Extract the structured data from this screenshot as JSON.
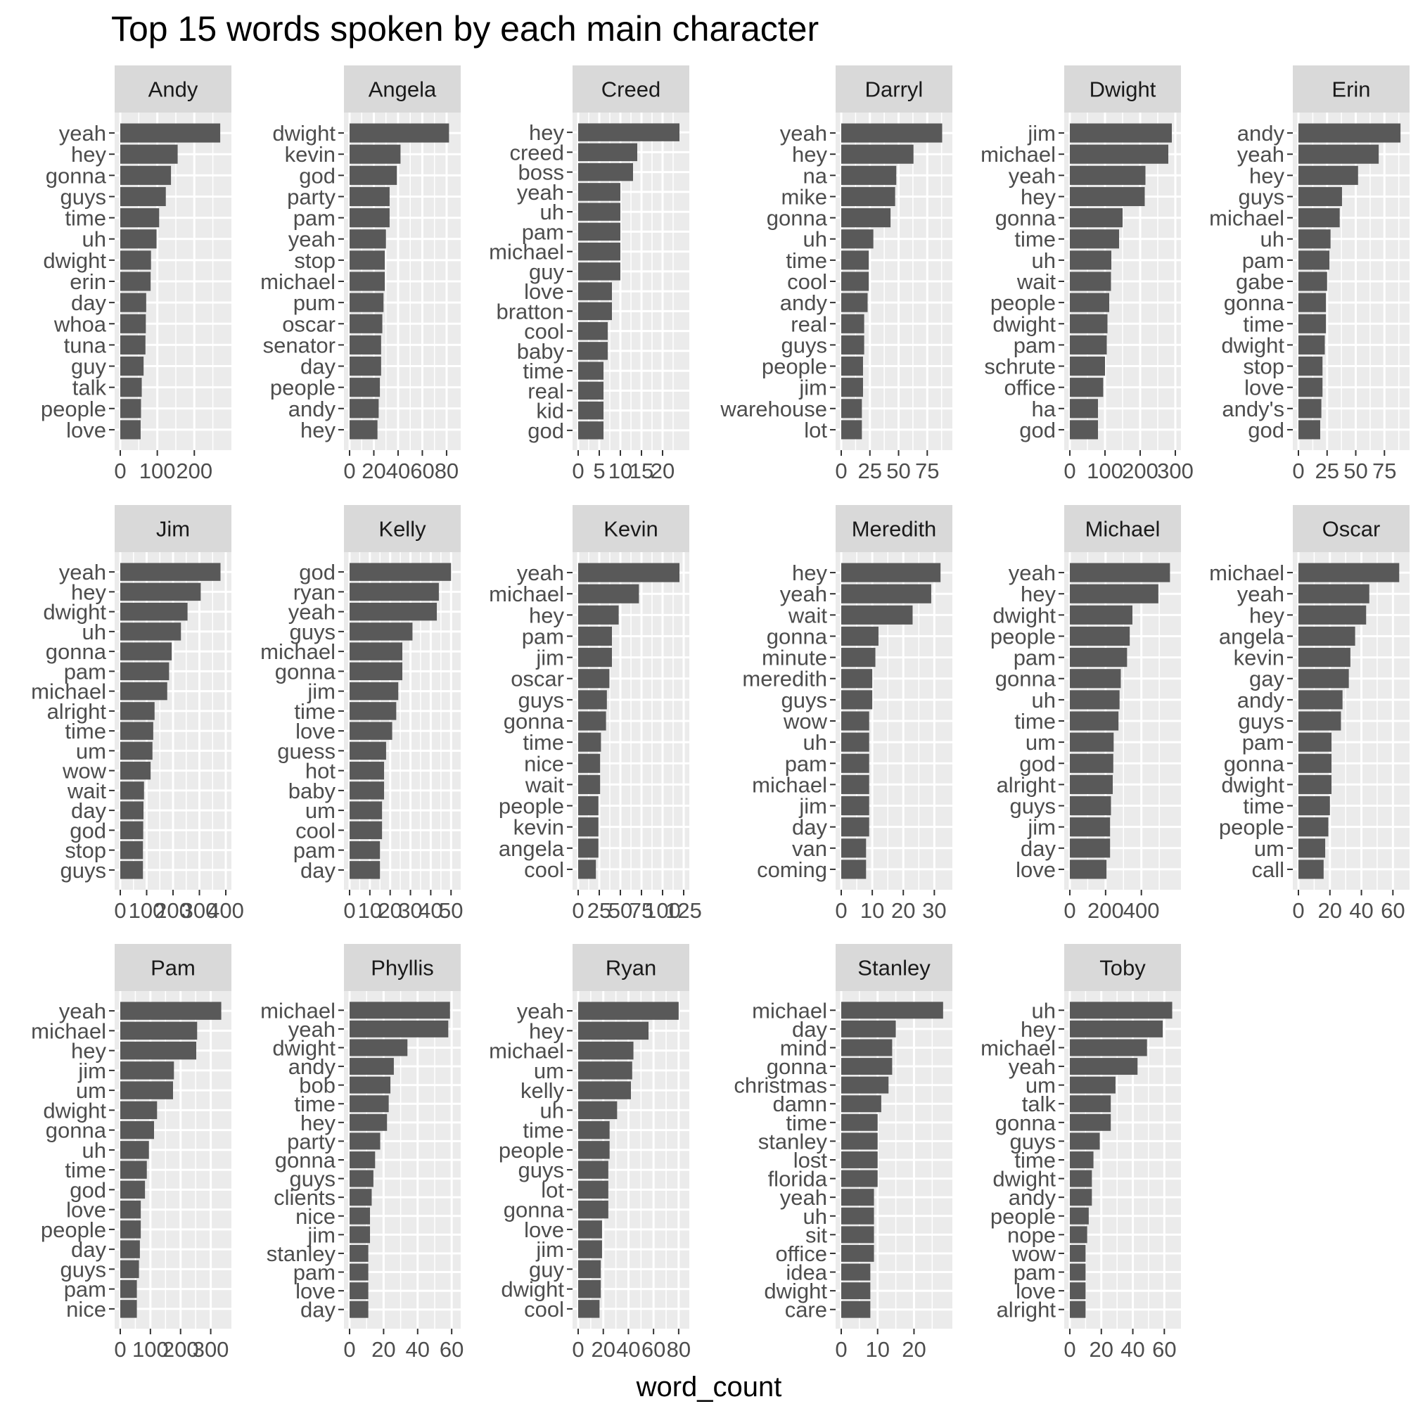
{
  "chart_data": {
    "type": "bar",
    "title": "Top 15 words spoken by each main character",
    "xlabel": "word_count",
    "ylabel": "",
    "orientation": "horizontal",
    "grid": true,
    "colors": {
      "bar": "#595959",
      "panel": "#ebebeb",
      "strip": "#d9d9d9",
      "grid": "#ffffff",
      "text": "#4d4d4d"
    },
    "panels": [
      {
        "name": "Andy",
        "xlim": [
          0,
          285
        ],
        "ticks": [
          0,
          100,
          200
        ],
        "tick_labels": [
          "0",
          "100",
          "200"
        ],
        "words": [
          "yeah",
          "hey",
          "gonna",
          "guys",
          "time",
          "uh",
          "dwight",
          "erin",
          "day",
          "whoa",
          "tuna",
          "guy",
          "talk",
          "people",
          "love"
        ],
        "values": [
          270,
          155,
          137,
          123,
          105,
          98,
          83,
          82,
          70,
          69,
          68,
          63,
          58,
          56,
          55
        ]
      },
      {
        "name": "Angela",
        "xlim": [
          0,
          87
        ],
        "ticks": [
          0,
          20,
          40,
          60,
          80
        ],
        "tick_labels": [
          "0",
          "20",
          "40",
          "60",
          "80"
        ],
        "words": [
          "dwight",
          "kevin",
          "god",
          "party",
          "pam",
          "yeah",
          "stop",
          "michael",
          "pum",
          "oscar",
          "senator",
          "day",
          "people",
          "andy",
          "hey"
        ],
        "values": [
          82,
          42,
          39,
          33,
          33,
          30,
          29,
          29,
          28,
          27,
          26,
          26,
          25,
          24,
          23
        ]
      },
      {
        "name": "Creed",
        "xlim": [
          0,
          25
        ],
        "ticks": [
          0,
          5,
          10,
          15,
          20
        ],
        "tick_labels": [
          "0",
          "5",
          "10",
          "15",
          "20"
        ],
        "words": [
          "hey",
          "creed",
          "boss",
          "yeah",
          "uh",
          "pam",
          "michael",
          "guy",
          "love",
          "bratton",
          "cool",
          "baby",
          "time",
          "real",
          "kid",
          "god"
        ],
        "values": [
          24,
          14,
          13,
          10,
          10,
          10,
          10,
          10,
          8,
          8,
          7,
          7,
          6,
          6,
          6,
          6
        ]
      },
      {
        "name": "Darryl",
        "xlim": [
          0,
          92
        ],
        "ticks": [
          0,
          25,
          50,
          75
        ],
        "tick_labels": [
          "0",
          "25",
          "50",
          "75"
        ],
        "words": [
          "yeah",
          "hey",
          "na",
          "mike",
          "gonna",
          "uh",
          "time",
          "cool",
          "andy",
          "real",
          "guys",
          "people",
          "jim",
          "warehouse",
          "lot"
        ],
        "values": [
          88,
          63,
          48,
          47,
          43,
          28,
          24,
          24,
          23,
          20,
          20,
          19,
          19,
          18,
          18
        ]
      },
      {
        "name": "Dwight",
        "xlim": [
          0,
          300
        ],
        "ticks": [
          0,
          100,
          200,
          300
        ],
        "tick_labels": [
          "0",
          "100",
          "200",
          "300"
        ],
        "words": [
          "jim",
          "michael",
          "yeah",
          "hey",
          "gonna",
          "time",
          "uh",
          "wait",
          "people",
          "dwight",
          "pam",
          "schrute",
          "office",
          "ha",
          "god"
        ],
        "values": [
          290,
          280,
          215,
          213,
          150,
          140,
          118,
          117,
          112,
          107,
          105,
          100,
          95,
          80,
          80
        ]
      },
      {
        "name": "Erin",
        "xlim": [
          0,
          92
        ],
        "ticks": [
          0,
          25,
          50,
          75
        ],
        "tick_labels": [
          "0",
          "25",
          "50",
          "75"
        ],
        "words": [
          "andy",
          "yeah",
          "hey",
          "guys",
          "michael",
          "uh",
          "pam",
          "gabe",
          "gonna",
          "time",
          "dwight",
          "stop",
          "love",
          "andy's",
          "god"
        ],
        "values": [
          89,
          70,
          52,
          38,
          36,
          28,
          27,
          25,
          24,
          24,
          23,
          21,
          21,
          20,
          19
        ]
      },
      {
        "name": "Jim",
        "xlim": [
          0,
          400
        ],
        "ticks": [
          0,
          100,
          200,
          300,
          400
        ],
        "tick_labels": [
          "0",
          "100",
          "200",
          "300",
          "400"
        ],
        "words": [
          "yeah",
          "hey",
          "dwight",
          "uh",
          "gonna",
          "pam",
          "michael",
          "alright",
          "time",
          "um",
          "wow",
          "wait",
          "day",
          "god",
          "stop",
          "guys"
        ],
        "values": [
          380,
          305,
          255,
          230,
          195,
          185,
          178,
          130,
          125,
          122,
          115,
          90,
          88,
          87,
          86,
          86
        ]
      },
      {
        "name": "Kelly",
        "xlim": [
          0,
          52
        ],
        "ticks": [
          0,
          10,
          20,
          30,
          40,
          50
        ],
        "tick_labels": [
          "0",
          "10",
          "20",
          "30",
          "40",
          "50"
        ],
        "words": [
          "god",
          "ryan",
          "yeah",
          "guys",
          "michael",
          "gonna",
          "jim",
          "time",
          "love",
          "guess",
          "hot",
          "baby",
          "um",
          "cool",
          "pam",
          "day"
        ],
        "values": [
          50,
          44,
          43,
          31,
          26,
          26,
          24,
          23,
          21,
          18,
          17,
          17,
          16,
          16,
          15,
          15
        ]
      },
      {
        "name": "Kevin",
        "xlim": [
          0,
          125
        ],
        "ticks": [
          0,
          25,
          50,
          75,
          100,
          125
        ],
        "tick_labels": [
          "0",
          "25",
          "50",
          "75",
          "100",
          "125"
        ],
        "words": [
          "yeah",
          "michael",
          "hey",
          "pam",
          "jim",
          "oscar",
          "guys",
          "gonna",
          "time",
          "nice",
          "wait",
          "people",
          "kevin",
          "angela",
          "cool"
        ],
        "values": [
          120,
          72,
          48,
          40,
          40,
          37,
          34,
          33,
          27,
          26,
          26,
          24,
          24,
          24,
          21
        ]
      },
      {
        "name": "Meredith",
        "xlim": [
          0,
          34
        ],
        "ticks": [
          0,
          10,
          20,
          30
        ],
        "tick_labels": [
          "0",
          "10",
          "20",
          "30"
        ],
        "words": [
          "hey",
          "yeah",
          "wait",
          "gonna",
          "minute",
          "meredith",
          "guys",
          "wow",
          "uh",
          "pam",
          "michael",
          "jim",
          "day",
          "van",
          "coming"
        ],
        "values": [
          32,
          29,
          23,
          12,
          11,
          10,
          10,
          9,
          9,
          9,
          9,
          9,
          9,
          8,
          8
        ]
      },
      {
        "name": "Michael",
        "xlim": [
          0,
          590
        ],
        "ticks": [
          0,
          200,
          400
        ],
        "tick_labels": [
          "0",
          "200",
          "400"
        ],
        "words": [
          "yeah",
          "hey",
          "dwight",
          "people",
          "pam",
          "gonna",
          "uh",
          "time",
          "um",
          "god",
          "alright",
          "guys",
          "jim",
          "day",
          "love"
        ],
        "values": [
          560,
          495,
          350,
          335,
          320,
          285,
          278,
          272,
          245,
          243,
          240,
          230,
          225,
          225,
          205
        ]
      },
      {
        "name": "Oscar",
        "xlim": [
          0,
          67
        ],
        "ticks": [
          0,
          20,
          40,
          60
        ],
        "tick_labels": [
          "0",
          "20",
          "40",
          "60"
        ],
        "words": [
          "michael",
          "yeah",
          "hey",
          "angela",
          "kevin",
          "gay",
          "andy",
          "guys",
          "pam",
          "gonna",
          "dwight",
          "time",
          "people",
          "um",
          "call"
        ],
        "values": [
          64,
          45,
          43,
          36,
          33,
          32,
          28,
          27,
          21,
          21,
          21,
          20,
          19,
          17,
          16
        ]
      },
      {
        "name": "Pam",
        "xlim": [
          0,
          350
        ],
        "ticks": [
          0,
          100,
          200,
          300
        ],
        "tick_labels": [
          "0",
          "100",
          "200",
          "300"
        ],
        "words": [
          "yeah",
          "michael",
          "hey",
          "jim",
          "um",
          "dwight",
          "gonna",
          "uh",
          "time",
          "god",
          "love",
          "people",
          "day",
          "guys",
          "pam",
          "nice"
        ],
        "values": [
          335,
          255,
          252,
          178,
          175,
          122,
          112,
          95,
          88,
          82,
          68,
          68,
          65,
          62,
          55,
          55
        ]
      },
      {
        "name": "Phyllis",
        "xlim": [
          0,
          62
        ],
        "ticks": [
          0,
          20,
          40,
          60
        ],
        "tick_labels": [
          "0",
          "20",
          "40",
          "60"
        ],
        "words": [
          "michael",
          "yeah",
          "dwight",
          "andy",
          "bob",
          "time",
          "hey",
          "party",
          "gonna",
          "guys",
          "clients",
          "nice",
          "jim",
          "stanley",
          "pam",
          "love",
          "day"
        ],
        "values": [
          59,
          58,
          34,
          26,
          24,
          23,
          22,
          18,
          15,
          14,
          13,
          12,
          12,
          11,
          11,
          11,
          11
        ]
      },
      {
        "name": "Ryan",
        "xlim": [
          0,
          84
        ],
        "ticks": [
          0,
          20,
          40,
          60,
          80
        ],
        "tick_labels": [
          "0",
          "20",
          "40",
          "60",
          "80"
        ],
        "words": [
          "yeah",
          "hey",
          "michael",
          "um",
          "kelly",
          "uh",
          "time",
          "people",
          "guys",
          "lot",
          "gonna",
          "love",
          "jim",
          "guy",
          "dwight",
          "cool"
        ],
        "values": [
          80,
          56,
          44,
          43,
          42,
          31,
          25,
          25,
          24,
          24,
          24,
          19,
          19,
          18,
          18,
          17
        ]
      },
      {
        "name": "Stanley",
        "xlim": [
          0,
          29
        ],
        "ticks": [
          0,
          10,
          20
        ],
        "tick_labels": [
          "0",
          "10",
          "20"
        ],
        "words": [
          "michael",
          "day",
          "mind",
          "gonna",
          "christmas",
          "damn",
          "time",
          "stanley",
          "lost",
          "florida",
          "yeah",
          "uh",
          "sit",
          "office",
          "idea",
          "dwight",
          "care"
        ],
        "values": [
          28,
          15,
          14,
          14,
          13,
          11,
          10,
          10,
          10,
          10,
          9,
          9,
          9,
          9,
          8,
          8,
          8
        ]
      },
      {
        "name": "Toby",
        "xlim": [
          0,
          67
        ],
        "ticks": [
          0,
          20,
          40,
          60
        ],
        "tick_labels": [
          "0",
          "20",
          "40",
          "60"
        ],
        "words": [
          "uh",
          "hey",
          "michael",
          "yeah",
          "um",
          "talk",
          "gonna",
          "guys",
          "time",
          "dwight",
          "andy",
          "people",
          "nope",
          "wow",
          "pam",
          "love",
          "alright"
        ],
        "values": [
          65,
          59,
          49,
          43,
          29,
          26,
          26,
          19,
          15,
          14,
          14,
          12,
          11,
          10,
          10,
          10,
          10
        ]
      }
    ]
  }
}
